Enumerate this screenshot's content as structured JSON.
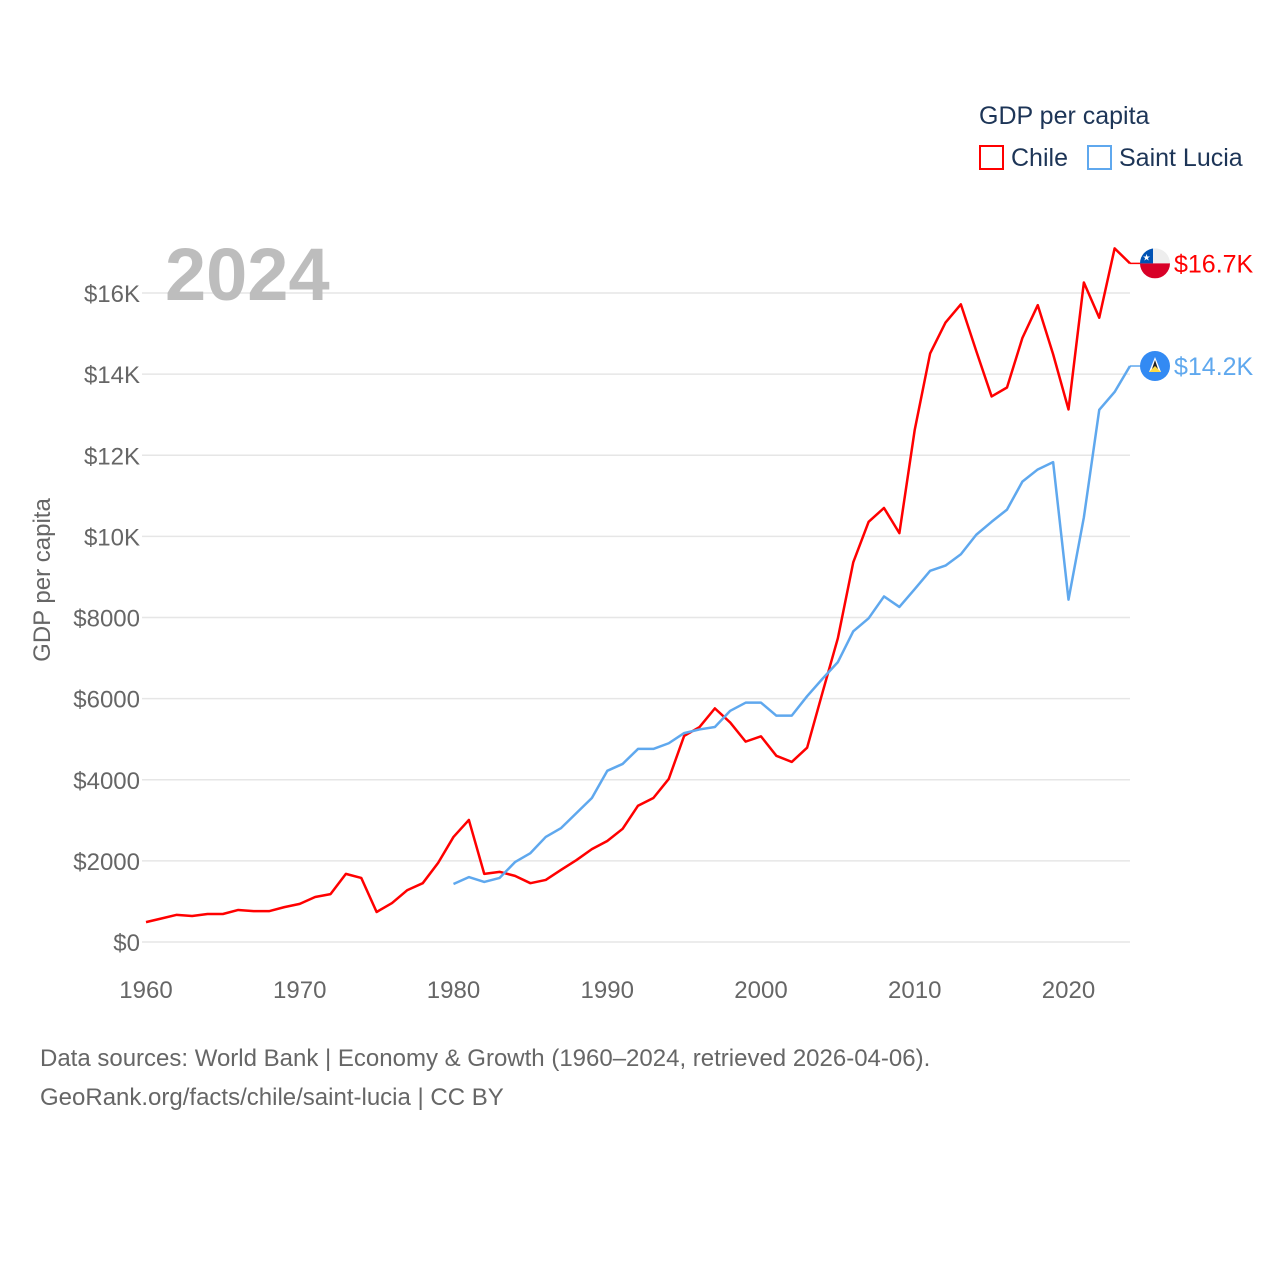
{
  "chart_data": {
    "type": "line",
    "title": "GDP per capita",
    "year_watermark": "2024",
    "xlabel": "",
    "ylabel": "GDP per capita",
    "xlim": [
      1960,
      2024
    ],
    "ylim": [
      0,
      16000
    ],
    "grid": true,
    "legend_placement": "top-right",
    "x_ticks": [
      1960,
      1970,
      1980,
      1990,
      2000,
      2010,
      2020
    ],
    "x_tick_labels": [
      "1960",
      "1970",
      "1980",
      "1990",
      "2000",
      "2010",
      "2020"
    ],
    "y_ticks": [
      0,
      2000,
      4000,
      6000,
      8000,
      10000,
      12000,
      14000,
      16000
    ],
    "y_tick_labels": [
      "$0",
      "$2000",
      "$4000",
      "$6000",
      "$8000",
      "$10K",
      "$12K",
      "$14K",
      "$16K"
    ],
    "series": [
      {
        "name": "Chile",
        "color": "#ff0000",
        "end_label": "$16.7K",
        "flag": "chile-flag",
        "start_year": 1960,
        "values": [
          490,
          580,
          670,
          640,
          690,
          690,
          790,
          760,
          760,
          860,
          940,
          1110,
          1180,
          1680,
          1580,
          740,
          960,
          1280,
          1450,
          1950,
          2590,
          3010,
          1680,
          1730,
          1630,
          1450,
          1530,
          1780,
          2020,
          2290,
          2490,
          2790,
          3360,
          3550,
          4020,
          5080,
          5300,
          5760,
          5410,
          4940,
          5070,
          4590,
          4440,
          4790,
          6150,
          7490,
          9360,
          10360,
          10700,
          10080,
          12630,
          14510,
          15270,
          15720,
          14570,
          13450,
          13670,
          14890,
          15700,
          14490,
          13130,
          16260,
          15390,
          17100,
          16730
        ]
      },
      {
        "name": "Saint Lucia",
        "color": "#5fa8ee",
        "end_label": "$14.2K",
        "flag": "saint-lucia-flag",
        "start_year": 1980,
        "values": [
          1430,
          1600,
          1480,
          1580,
          1970,
          2190,
          2590,
          2810,
          3180,
          3550,
          4220,
          4390,
          4760,
          4760,
          4900,
          5150,
          5240,
          5300,
          5700,
          5900,
          5900,
          5580,
          5580,
          6060,
          6490,
          6900,
          7660,
          7980,
          8520,
          8260,
          8700,
          9150,
          9280,
          9560,
          10040,
          10360,
          10660,
          11350,
          11650,
          11830,
          8440,
          10470,
          13120,
          13560,
          14200
        ]
      }
    ]
  },
  "footer": {
    "line1": "Data sources: World Bank | Economy & Growth (1960–2024, retrieved 2026-04-06).",
    "line2": "GeoRank.org/facts/chile/saint-lucia | CC BY"
  }
}
